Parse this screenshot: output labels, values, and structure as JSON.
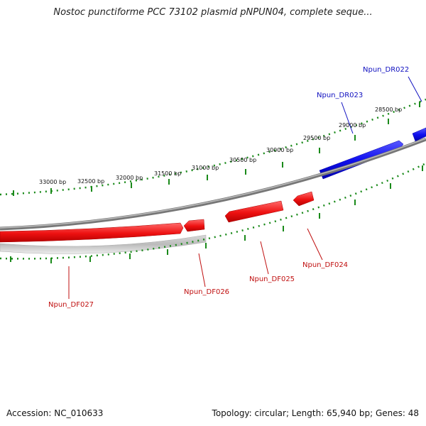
{
  "title": "Nostoc punctiforme PCC 73102 plasmid pNPUN04, complete seque...",
  "accession": "Accession: NC_010633",
  "summary": "Topology: circular; Length: 65,940 bp; Genes: 48",
  "colors": {
    "forward_gene": "#1010e0",
    "reverse_gene": "#e01010",
    "backbone": "#808080",
    "ticks": "#1a7a1a",
    "label_forward": "#1010c0",
    "label_reverse": "#c01010"
  },
  "tick_labels": [
    "28500 bp",
    "29000 bp",
    "29500 bp",
    "30000 bp",
    "30500 bp",
    "31000 bp",
    "31500 bp",
    "32000 bp",
    "32500 bp",
    "33000 bp"
  ],
  "genes": [
    {
      "name": "Npun_DR022",
      "strand": "forward"
    },
    {
      "name": "Npun_DR023",
      "strand": "forward"
    },
    {
      "name": "Npun_DF024",
      "strand": "reverse"
    },
    {
      "name": "Npun_DF025",
      "strand": "reverse"
    },
    {
      "name": "Npun_DF026",
      "strand": "reverse"
    },
    {
      "name": "Npun_DF027",
      "strand": "reverse"
    }
  ]
}
